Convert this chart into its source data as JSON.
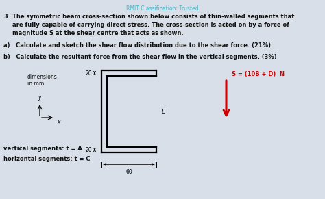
{
  "background_color": "#d8dfe8",
  "header_text": "RMIT Classification: Trusted",
  "header_color": "#4ab8c8",
  "header_fontsize": 5.5,
  "question_number": "3",
  "question_text": "The symmetric beam cross-section shown below consists of thin-walled segments that\nare fully capable of carrying direct stress. The cross-section is acted on by a force of\nmagnitude S at the shear centre that acts as shown.",
  "part_a": "a)   Calculate and sketch the shear flow distribution due to the shear force. (21%)",
  "part_b": "b)   Calculate the resultant force from the shear flow in the vertical segments. (3%)",
  "dim_label": "dimensions\nin mm",
  "top_dim": "20",
  "bot_dim": "20",
  "width_dim": "60",
  "E_label": "E",
  "S_label": "S = (10B + D)  N",
  "vert_seg": "vertical segments: t = A",
  "horiz_seg": "horizontal segments: t = C",
  "arrow_color": "#cc0000",
  "text_color": "#111111",
  "q_fontsize": 6.0,
  "label_fontsize": 5.5,
  "dim_fontsize": 5.5
}
